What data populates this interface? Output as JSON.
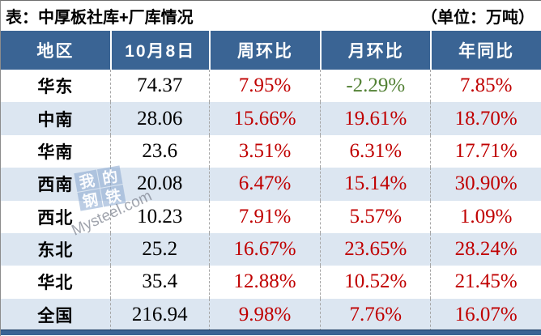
{
  "title": {
    "left": "表：中厚板社库+厂库情况",
    "unit": "（单位：万吨）"
  },
  "chart_data": {
    "type": "table",
    "title": "表：中厚板社库+厂库情况",
    "unit": "万吨",
    "columns": [
      "地区",
      "10月8日",
      "周环比",
      "月环比",
      "年同比"
    ],
    "rows": [
      [
        "华东",
        "74.37",
        "7.95%",
        "-2.29%",
        "7.85%"
      ],
      [
        "中南",
        "28.06",
        "15.66%",
        "19.61%",
        "18.70%"
      ],
      [
        "华南",
        "23.6",
        "3.51%",
        "6.31%",
        "17.71%"
      ],
      [
        "西南",
        "20.08",
        "6.47%",
        "15.14%",
        "30.90%"
      ],
      [
        "西北",
        "10.23",
        "7.91%",
        "5.57%",
        "1.09%"
      ],
      [
        "东北",
        "25.2",
        "16.67%",
        "23.65%",
        "28.24%"
      ],
      [
        "华北",
        "35.4",
        "12.88%",
        "10.52%",
        "21.45%"
      ],
      [
        "全国",
        "216.94",
        "9.98%",
        "7.76%",
        "16.07%"
      ]
    ]
  },
  "cell_colors": [
    [
      "",
      "",
      "red",
      "green",
      "red"
    ],
    [
      "",
      "",
      "red",
      "red",
      "red"
    ],
    [
      "",
      "",
      "red",
      "red",
      "red"
    ],
    [
      "",
      "",
      "red",
      "red",
      "red"
    ],
    [
      "",
      "",
      "red",
      "red",
      "red"
    ],
    [
      "",
      "",
      "red",
      "red",
      "red"
    ],
    [
      "",
      "",
      "red",
      "red",
      "red"
    ],
    [
      "",
      "",
      "red",
      "red",
      "red"
    ]
  ],
  "watermark": {
    "chars": [
      "我",
      "的",
      "钢",
      "铁"
    ],
    "domain": "Mysteel.com"
  },
  "palette": {
    "header_bg": "#3A6494",
    "alt_row_bg": "#DCE6F1",
    "red": "#C00000",
    "green": "#538135",
    "divider": "#A6A6A6",
    "bottom_bar": "#3A6494"
  }
}
